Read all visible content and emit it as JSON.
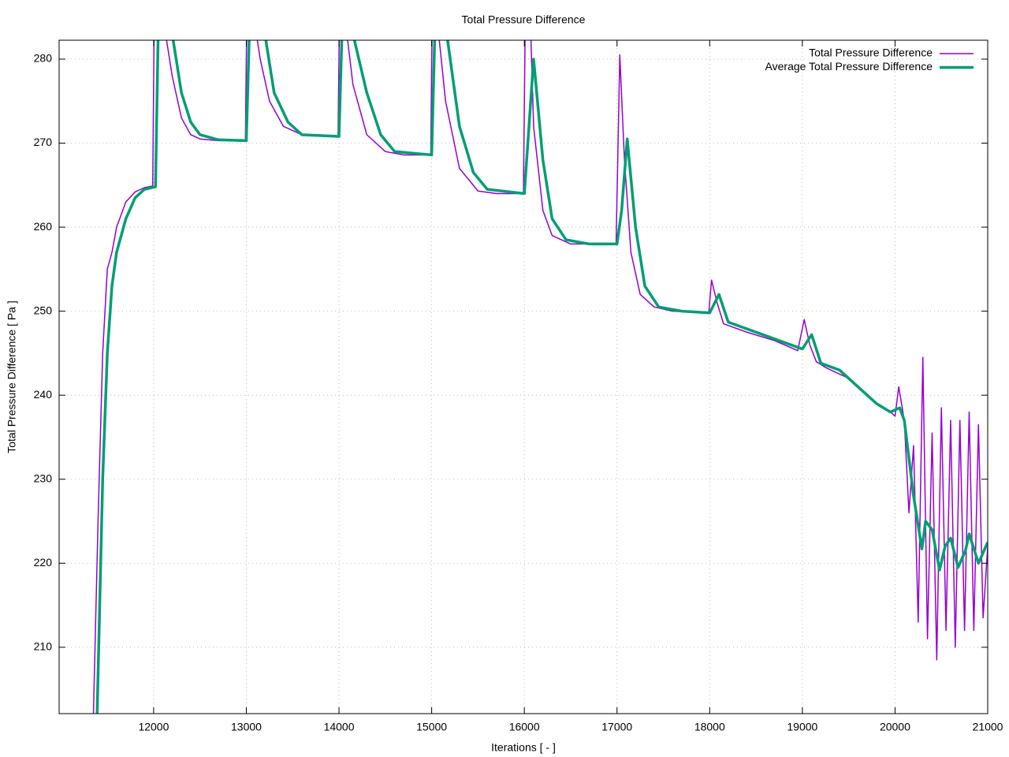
{
  "chart_data": {
    "type": "line",
    "title": "Total Pressure Difference",
    "xlabel": "Iterations [ - ]",
    "ylabel": "Total Pressure Difference [ Pa ]",
    "xlim": [
      10980,
      21000
    ],
    "ylim": [
      202.1,
      282.25
    ],
    "xticks": [
      12000,
      13000,
      14000,
      15000,
      16000,
      17000,
      18000,
      19000,
      20000,
      21000
    ],
    "yticks": [
      210,
      220,
      230,
      240,
      250,
      260,
      270,
      280
    ],
    "grid": true,
    "legend": "top-right",
    "series": [
      {
        "name": "Total Pressure Difference",
        "color": "#9400d3",
        "width": 1.5,
        "x": [
          11350,
          11400,
          11450,
          11500,
          11550,
          11600,
          11700,
          11800,
          11900,
          11990,
          12010,
          12100,
          12200,
          12300,
          12400,
          12500,
          12700,
          12990,
          13010,
          13150,
          13250,
          13400,
          13600,
          13990,
          14010,
          14150,
          14300,
          14500,
          14700,
          14990,
          15010,
          15150,
          15300,
          15500,
          15700,
          15990,
          16010,
          16050,
          16100,
          16200,
          16300,
          16500,
          16990,
          17030,
          17080,
          17150,
          17250,
          17400,
          17600,
          17990,
          18020,
          18080,
          18150,
          18400,
          18700,
          18950,
          19020,
          19080,
          19150,
          19250,
          19500,
          19800,
          19950,
          20000,
          20040,
          20100,
          20150,
          20200,
          20250,
          20300,
          20350,
          20400,
          20450,
          20500,
          20550,
          20600,
          20650,
          20700,
          20750,
          20800,
          20850,
          20900,
          20950,
          21000
        ],
        "values": [
          202,
          225,
          245,
          255,
          257,
          260,
          263,
          264.2,
          264.7,
          264.9,
          290,
          285,
          278,
          273,
          271,
          270.5,
          270.3,
          270.3,
          290,
          280,
          275,
          272,
          271,
          270.8,
          290,
          277,
          271,
          269,
          268.6,
          268.6,
          290,
          275,
          267,
          264.3,
          264,
          264,
          285,
          290,
          272,
          262,
          259,
          258,
          258,
          280.5,
          268,
          257,
          252,
          250.5,
          250,
          249.8,
          253.7,
          251,
          248.5,
          247.5,
          246.5,
          245.3,
          249,
          246,
          244,
          243.3,
          242,
          239,
          238,
          237.5,
          241,
          237,
          226,
          234,
          213,
          244.5,
          211,
          235.5,
          208.5,
          238.5,
          212,
          237,
          210,
          237,
          212,
          238,
          212,
          236.5,
          213.5,
          222
        ]
      },
      {
        "name": "Average Total Pressure Difference",
        "color": "#009e73",
        "width": 3.5,
        "x": [
          11390,
          11450,
          11500,
          11550,
          11600,
          11700,
          11800,
          11900,
          12020,
          12060,
          12200,
          12300,
          12400,
          12500,
          12700,
          13000,
          13050,
          13200,
          13300,
          13450,
          13600,
          14000,
          14050,
          14150,
          14300,
          14450,
          14600,
          15000,
          15050,
          15150,
          15300,
          15450,
          15600,
          16000,
          16100,
          16200,
          16300,
          16450,
          16700,
          17000,
          17050,
          17110,
          17200,
          17300,
          17450,
          17700,
          18000,
          18100,
          18200,
          18500,
          18800,
          19000,
          19100,
          19200,
          19400,
          19600,
          19800,
          19950,
          20050,
          20100,
          20200,
          20290,
          20330,
          20400,
          20480,
          20540,
          20600,
          20680,
          20760,
          20800,
          20900,
          21000
        ],
        "values": [
          202,
          230,
          245,
          253,
          257,
          261,
          263.5,
          264.5,
          264.8,
          290,
          283,
          276,
          272.5,
          271,
          270.4,
          270.3,
          290,
          283,
          276,
          272.5,
          271,
          270.8,
          290,
          283,
          276,
          271,
          269,
          268.6,
          290,
          284,
          272,
          266.5,
          264.5,
          264,
          280,
          268,
          261,
          258.5,
          258,
          258,
          262,
          270.5,
          260,
          253,
          250.5,
          250,
          249.8,
          252,
          248.7,
          247.5,
          246.3,
          245.5,
          247.2,
          243.8,
          243,
          241,
          239,
          238,
          238.5,
          237,
          228,
          221.7,
          225,
          224,
          219.2,
          222,
          223,
          219.5,
          221.5,
          223.5,
          220,
          222.5
        ]
      }
    ]
  }
}
